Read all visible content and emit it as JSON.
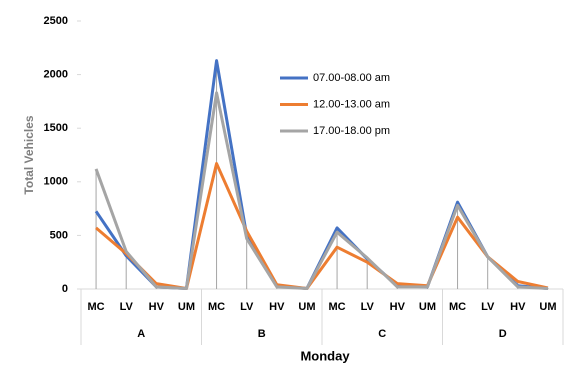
{
  "chart_data": {
    "type": "line",
    "y_label": "Total Vehicles",
    "x_label": "Monday",
    "categories": [
      "MC",
      "LV",
      "HV",
      "UM",
      "MC",
      "LV",
      "HV",
      "UM",
      "MC",
      "LV",
      "HV",
      "UM",
      "MC",
      "LV",
      "HV",
      "UM"
    ],
    "groups": [
      "A",
      "B",
      "C",
      "D"
    ],
    "series": [
      {
        "name": "07.00-08.00 am",
        "color": "#4472c4",
        "values": [
          725,
          310,
          20,
          5,
          2130,
          500,
          30,
          5,
          570,
          280,
          30,
          20,
          810,
          300,
          30,
          5
        ]
      },
      {
        "name": "12.00-13.00 am",
        "color": "#ed7d31",
        "values": [
          570,
          330,
          50,
          5,
          1170,
          540,
          40,
          5,
          390,
          250,
          50,
          30,
          670,
          300,
          70,
          10
        ]
      },
      {
        "name": "17.00-18.00 pm",
        "color": "#a5a5a5",
        "values": [
          1120,
          350,
          20,
          5,
          1830,
          470,
          20,
          5,
          530,
          290,
          20,
          20,
          780,
          300,
          20,
          5
        ]
      }
    ],
    "ylim": [
      0,
      2500
    ],
    "yticks": [
      0,
      500,
      1000,
      1500,
      2000,
      2500
    ],
    "drop_lines": true,
    "legend": "inside-top"
  }
}
